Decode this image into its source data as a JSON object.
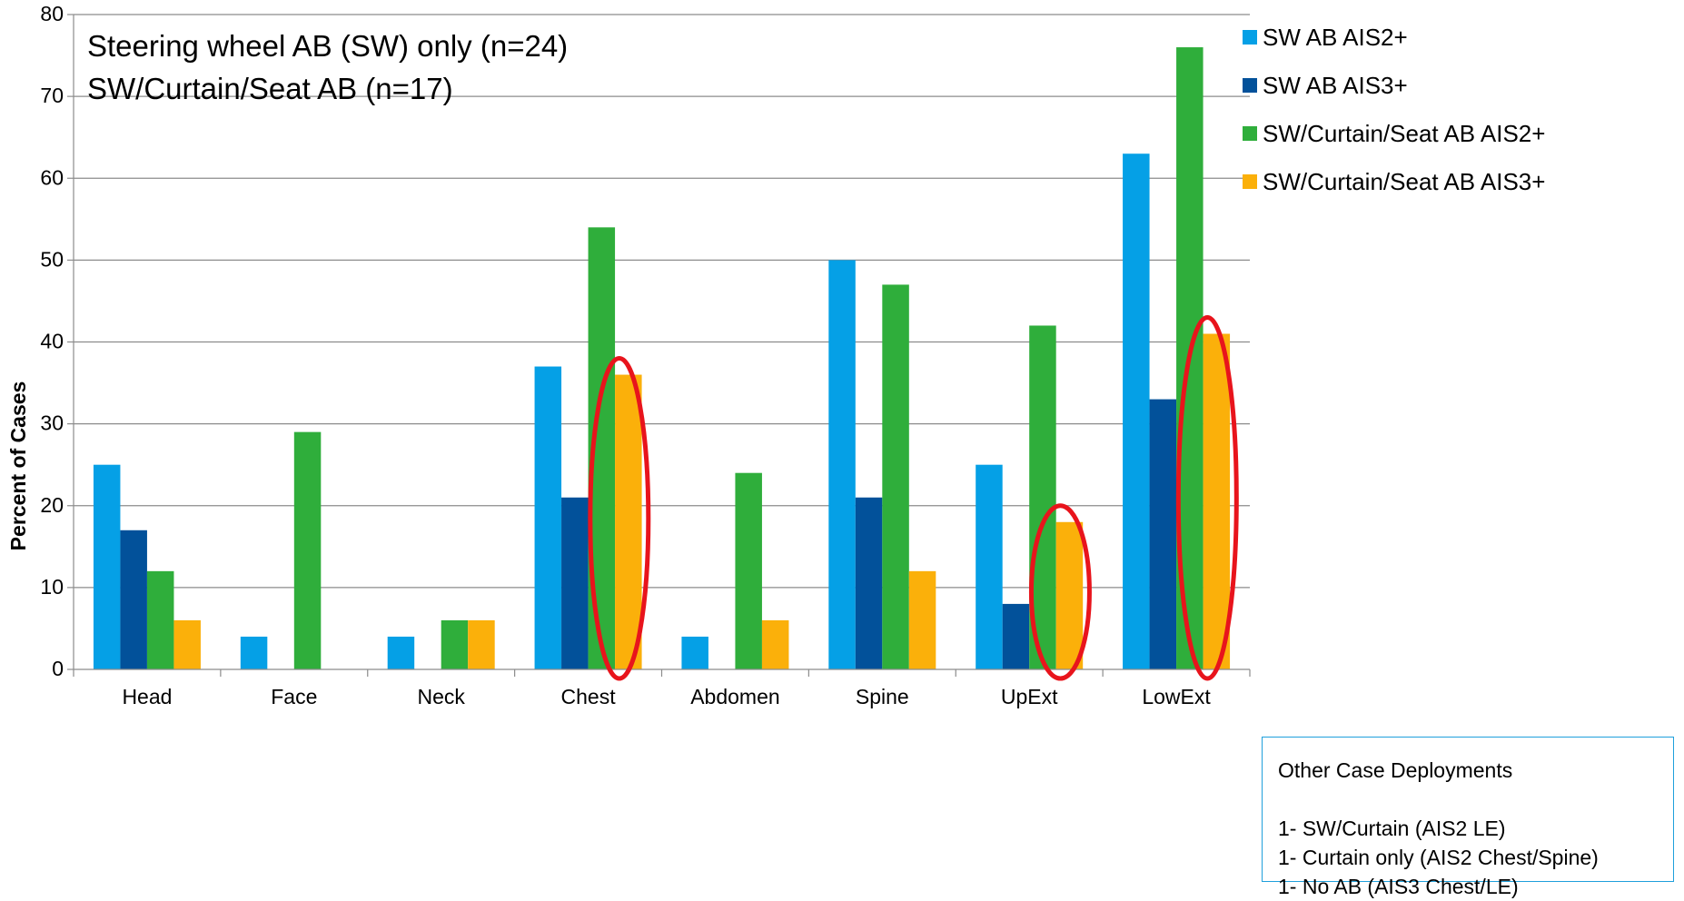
{
  "chart_data": {
    "type": "bar",
    "categories": [
      "Head",
      "Face",
      "Neck",
      "Chest",
      "Abdomen",
      "Spine",
      "UpExt",
      "LowExt"
    ],
    "series": [
      {
        "name": "SW AB  AIS2+",
        "color": "#05a0e6",
        "values": [
          25,
          4,
          4,
          37,
          4,
          50,
          25,
          63
        ]
      },
      {
        "name": "SW AB  AIS3+",
        "color": "#02519a",
        "values": [
          17,
          0,
          0,
          21,
          0,
          21,
          8,
          33
        ]
      },
      {
        "name": "SW/Curtain/Seat AB AIS2+",
        "color": "#2fae3b",
        "values": [
          12,
          29,
          6,
          54,
          24,
          47,
          42,
          76
        ]
      },
      {
        "name": "SW/Curtain/Seat AB AIS3+",
        "color": "#fbb00a",
        "values": [
          6,
          0,
          6,
          36,
          6,
          12,
          18,
          41
        ]
      }
    ],
    "ylabel": "Percent of Cases",
    "xlabel": "",
    "ylim": [
      0,
      80
    ],
    "yticks": [
      0,
      10,
      20,
      30,
      40,
      50,
      60,
      70,
      80
    ],
    "grid": true,
    "legend_position": "top-right",
    "annotations": {
      "subtitle_lines": [
        "Steering wheel AB (SW) only (n=24)",
        "SW/Curtain/Seat AB (n=17)"
      ],
      "highlight_color": "#e8141c",
      "highlighted": [
        {
          "category": "Chest",
          "series": "SW/Curtain/Seat AB AIS3+"
        },
        {
          "category": "UpExt",
          "series": "SW/Curtain/Seat AB AIS3+"
        },
        {
          "category": "LowExt",
          "series": "SW/Curtain/Seat AB AIS3+"
        }
      ]
    }
  },
  "note_box": {
    "title": "Other Case Deployments",
    "lines": [
      "1- SW/Curtain (AIS2 LE)",
      "1- Curtain only (AIS2 Chest/Spine)",
      "1- No AB  (AIS3 Chest/LE)"
    ]
  }
}
